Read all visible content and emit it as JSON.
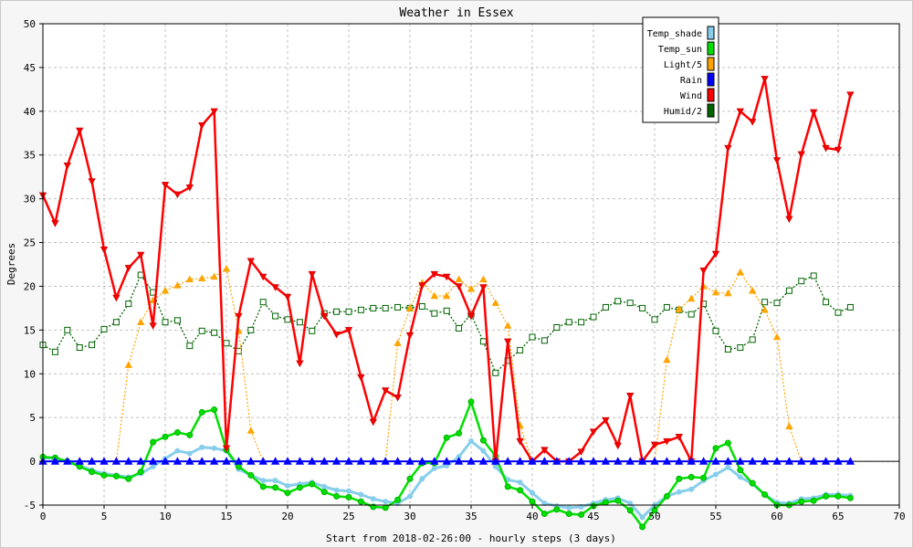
{
  "chart_data": {
    "type": "line",
    "title": "Weather in Essex",
    "xlabel": "Start from 2018-02-26:00 - hourly steps (3 days)",
    "ylabel": "Degrees",
    "xlim": [
      0,
      70
    ],
    "ylim": [
      -5,
      50
    ],
    "x_ticks": [
      0,
      5,
      10,
      15,
      20,
      25,
      30,
      35,
      40,
      45,
      50,
      55,
      60,
      65,
      70
    ],
    "y_ticks": [
      -5,
      0,
      5,
      10,
      15,
      20,
      25,
      30,
      35,
      40,
      45,
      50
    ],
    "grid": true,
    "legend_position": "top-right",
    "x": [
      0,
      1,
      2,
      3,
      4,
      5,
      6,
      7,
      8,
      9,
      10,
      11,
      12,
      13,
      14,
      15,
      16,
      17,
      18,
      19,
      20,
      21,
      22,
      23,
      24,
      25,
      26,
      27,
      28,
      29,
      30,
      31,
      32,
      33,
      34,
      35,
      36,
      37,
      38,
      39,
      40,
      41,
      42,
      43,
      44,
      45,
      46,
      47,
      48,
      49,
      50,
      51,
      52,
      53,
      54,
      55,
      56,
      57,
      58,
      59,
      60,
      61,
      62,
      63,
      64,
      65,
      66
    ],
    "series": [
      {
        "name": "Temp_shade",
        "color": "#87ceeb",
        "values": [
          0.4,
          0.3,
          0,
          -0.5,
          -1,
          -1.4,
          -1.6,
          -1.8,
          -1.4,
          -0.6,
          0.3,
          1.2,
          0.9,
          1.6,
          1.5,
          1.2,
          -0.9,
          -1.6,
          -2.2,
          -2.2,
          -2.8,
          -2.6,
          -2.4,
          -2.9,
          -3.3,
          -3.4,
          -3.8,
          -4.3,
          -4.6,
          -4.8,
          -4,
          -2,
          -0.8,
          -0.5,
          0.5,
          2.3,
          1.2,
          -0.6,
          -2.1,
          -2.4,
          -3.6,
          -4.8,
          -5.1,
          -5.3,
          -5.2,
          -4.8,
          -4.4,
          -4.2,
          -4.8,
          -6.4,
          -5,
          -4,
          -3.5,
          -3.2,
          -2.2,
          -1.5,
          -0.7,
          -1.8,
          -2.6,
          -3.8,
          -4.7,
          -4.8,
          -4.3,
          -4.2,
          -3.8,
          -3.8,
          -3.9
        ]
      },
      {
        "name": "Temp_sun",
        "color": "#00e000",
        "values": [
          0.5,
          0.4,
          0,
          -0.6,
          -1.2,
          -1.6,
          -1.7,
          -2,
          -1.2,
          2.2,
          2.8,
          3.3,
          3,
          5.6,
          5.9,
          1.3,
          -0.6,
          -1.6,
          -2.9,
          -3,
          -3.6,
          -3,
          -2.6,
          -3.5,
          -4,
          -4.1,
          -4.6,
          -5.2,
          -5.3,
          -4.4,
          -2,
          -0.2,
          -0.2,
          2.7,
          3.2,
          6.8,
          2.4,
          0.6,
          -2.9,
          -3.3,
          -4.6,
          -6,
          -5.5,
          -6,
          -6.1,
          -5.1,
          -4.7,
          -4.5,
          -5.6,
          -7.5,
          -5.6,
          -4,
          -2,
          -1.8,
          -1.9,
          1.5,
          2.1,
          -1,
          -2.5,
          -3.8,
          -5,
          -5,
          -4.6,
          -4.5,
          -4,
          -4,
          -4.2
        ]
      },
      {
        "name": "Light/5",
        "color": "#ffa500",
        "values": [
          0,
          0,
          0,
          0,
          0,
          0,
          0,
          11,
          15.9,
          18.4,
          19.5,
          20.1,
          20.8,
          20.9,
          21.1,
          22,
          14.9,
          3.5,
          0,
          0,
          0,
          0,
          0,
          0,
          0,
          0,
          0,
          0,
          0,
          13.5,
          17.5,
          20.4,
          18.9,
          18.9,
          20.8,
          19.7,
          20.8,
          18.1,
          15.5,
          4.1,
          0,
          0,
          0,
          0,
          0,
          0,
          0,
          0,
          0,
          0,
          0,
          11.6,
          17.4,
          18.6,
          20,
          19.3,
          19.2,
          21.6,
          19.5,
          17.3,
          14.2,
          4,
          0,
          0,
          0,
          0,
          0
        ]
      },
      {
        "name": "Rain",
        "color": "#0000ff",
        "values": [
          0,
          0,
          0,
          0,
          0,
          0,
          0,
          0,
          0,
          0,
          0,
          0,
          0,
          0,
          0,
          0,
          0,
          0,
          0,
          0,
          0,
          0,
          0,
          0,
          0,
          0,
          0,
          0,
          0,
          0,
          0,
          0,
          0,
          0,
          0,
          0,
          0,
          0,
          0,
          0,
          0,
          0,
          0,
          0,
          0,
          0,
          0,
          0,
          0,
          0,
          0,
          0,
          0,
          0,
          0,
          0,
          0,
          0,
          0,
          0,
          0,
          0,
          0,
          0,
          0,
          0,
          0
        ]
      },
      {
        "name": "Wind",
        "color": "#ff0000",
        "values": [
          30.4,
          27.2,
          33.8,
          37.8,
          32,
          24.2,
          18.7,
          22.1,
          23.6,
          15.5,
          31.6,
          30.5,
          31.3,
          38.4,
          40,
          1.5,
          16.6,
          22.9,
          21.1,
          19.9,
          18.8,
          11.2,
          21.4,
          16.6,
          14.5,
          15,
          9.6,
          4.5,
          8.1,
          7.3,
          14.4,
          20.1,
          21.4,
          21.1,
          20,
          16.6,
          19.9,
          0,
          13.7,
          2.3,
          0,
          1.3,
          0,
          0,
          1.1,
          3.4,
          4.7,
          1.8,
          7.5,
          0,
          1.9,
          2.3,
          2.8,
          0,
          21.8,
          23.7,
          35.8,
          40,
          38.8,
          43.7,
          34.4,
          27.7,
          35.1,
          39.9,
          35.8,
          35.6,
          41.9
        ]
      },
      {
        "name": "Humid/2",
        "color": "#006400",
        "values": [
          13.3,
          12.5,
          15,
          13,
          13.3,
          15.1,
          15.9,
          18,
          21.3,
          19.3,
          15.9,
          16.1,
          13.2,
          14.9,
          14.7,
          13.5,
          12.6,
          15,
          18.2,
          16.6,
          16.2,
          15.9,
          14.9,
          16.9,
          17.1,
          17.1,
          17.3,
          17.5,
          17.5,
          17.6,
          17.5,
          17.7,
          16.9,
          17.2,
          15.2,
          16.8,
          13.7,
          10.1,
          11.5,
          12.7,
          14.2,
          13.8,
          15.3,
          15.9,
          15.9,
          16.5,
          17.6,
          18.3,
          18.1,
          17.5,
          16.2,
          17.6,
          17.3,
          16.8,
          18,
          14.9,
          12.8,
          13,
          13.9,
          18.2,
          18.1,
          19.5,
          20.6,
          21.2,
          18.2,
          17,
          17.6
        ]
      }
    ]
  }
}
